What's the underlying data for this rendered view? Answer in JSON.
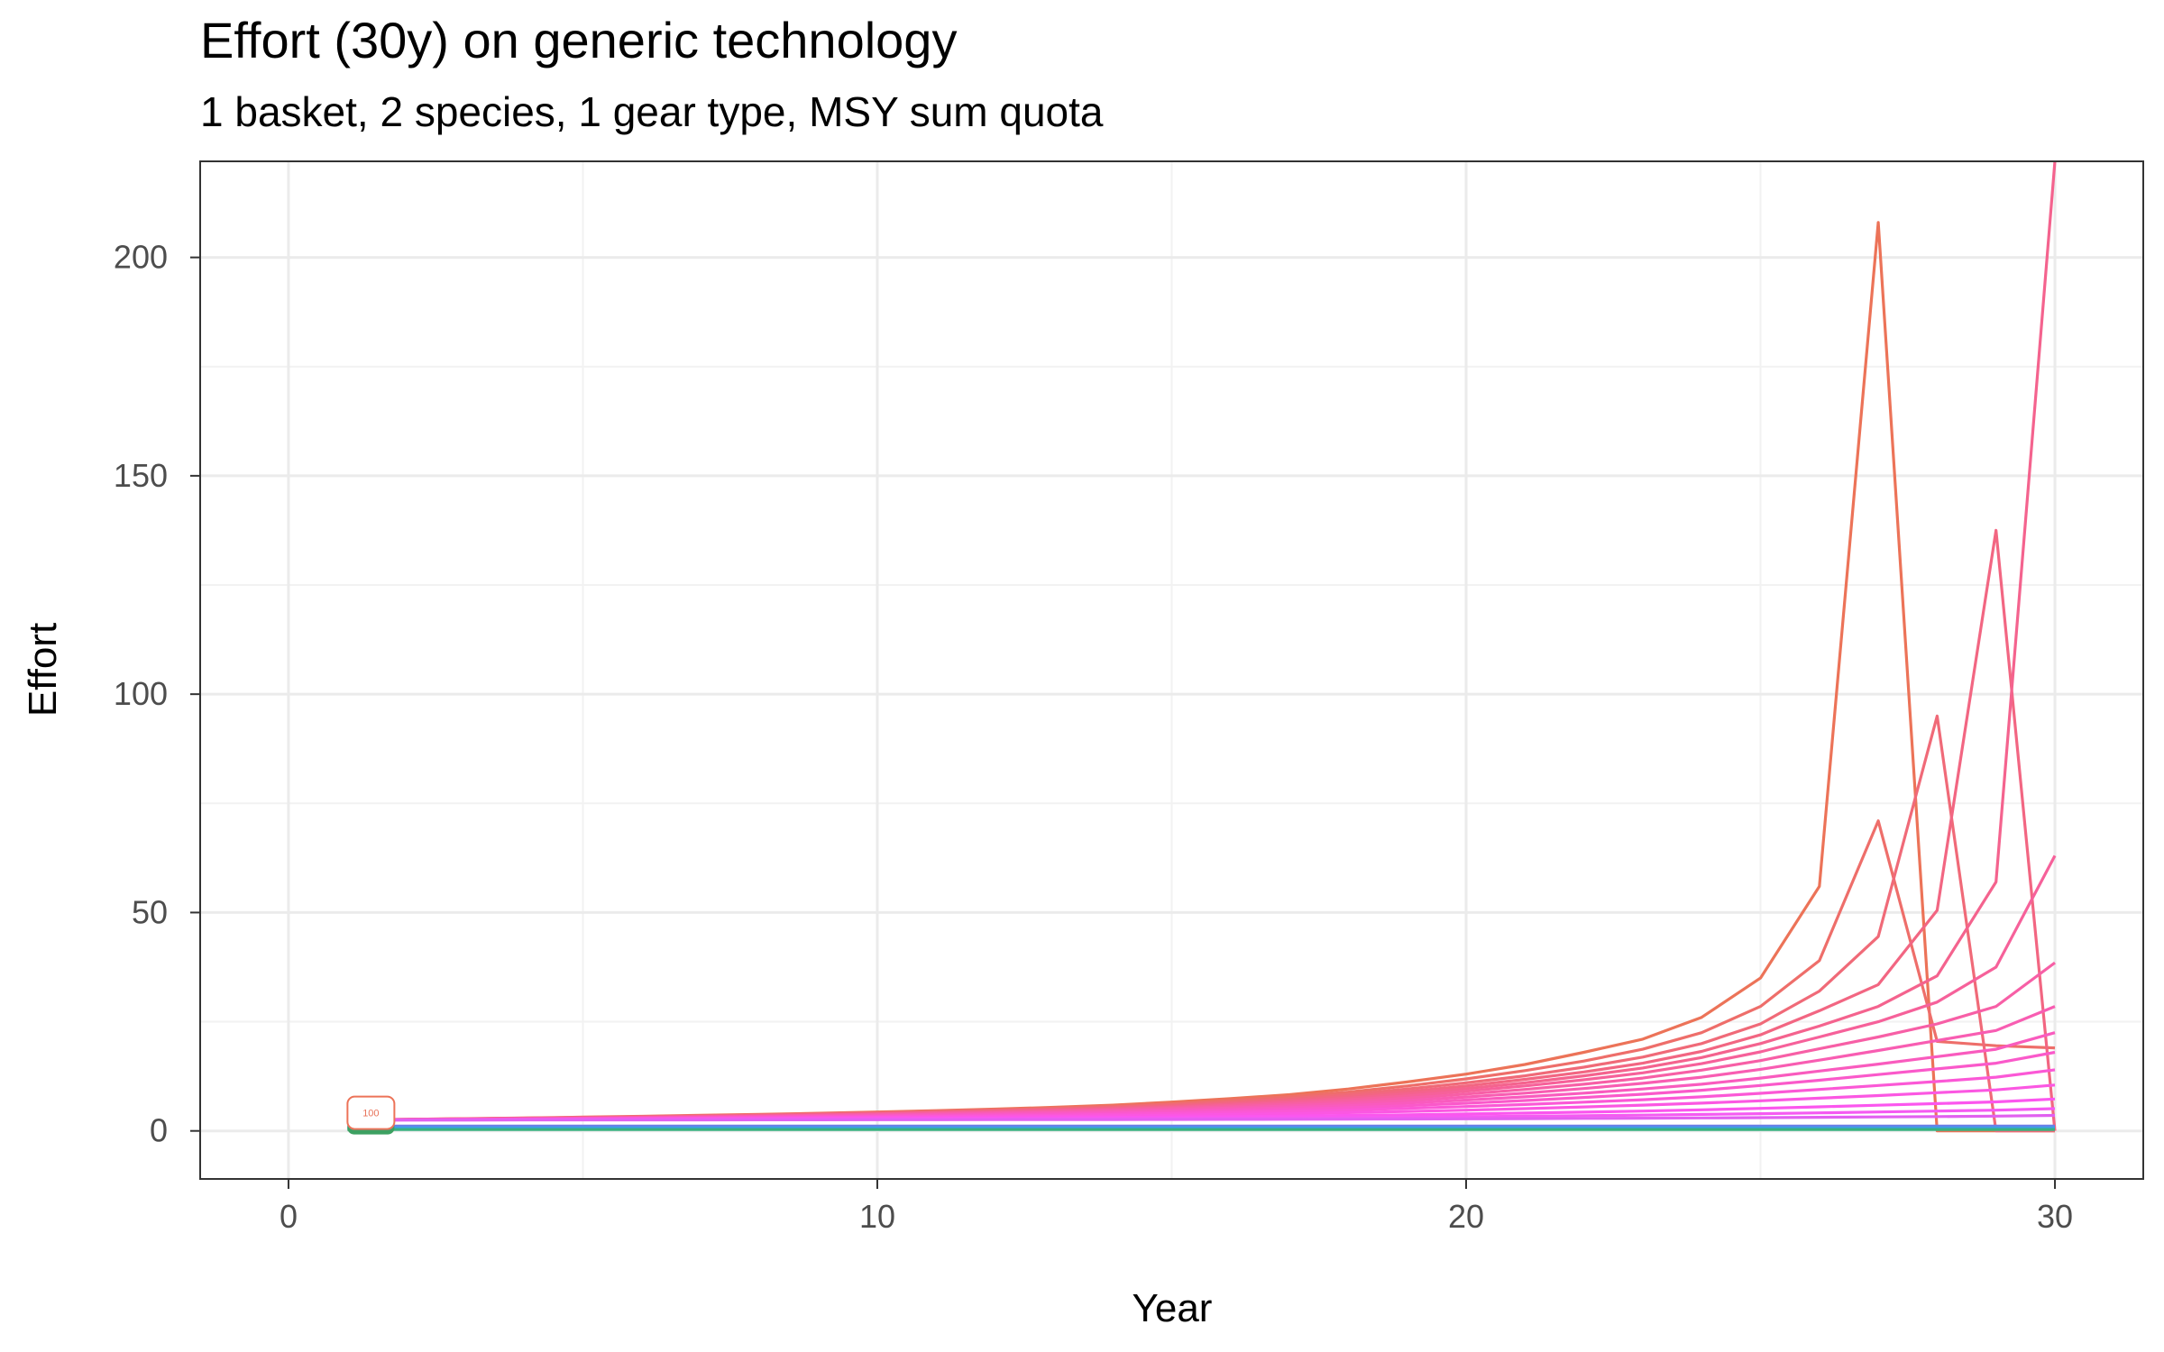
{
  "chart_data": {
    "type": "line",
    "title": "Effort (30y) on generic technology",
    "subtitle": "1 basket, 2 species, 1 gear type, MSY sum quota",
    "xlabel": "Year",
    "ylabel": "Effort",
    "xlim": [
      -1.5,
      31.5
    ],
    "ylim": [
      -11,
      222
    ],
    "x_ticks": [
      0,
      10,
      20,
      30
    ],
    "y_ticks": [
      0,
      50,
      100,
      150,
      200
    ],
    "x_ticks_minor": [
      5,
      15,
      25
    ],
    "y_ticks_minor": [
      25,
      75,
      125,
      175
    ],
    "grid": true,
    "legend": "none",
    "label_box": {
      "text": "100",
      "x": 1.4,
      "y": 2.5
    },
    "x": [
      1,
      2,
      3,
      4,
      5,
      6,
      7,
      8,
      9,
      10,
      11,
      12,
      13,
      14,
      15,
      16,
      17,
      18,
      19,
      20,
      21,
      22,
      23,
      24,
      25,
      26,
      27,
      28,
      29,
      30
    ],
    "series": [
      {
        "color": "#ec7358",
        "values": [
          2.5,
          2.65,
          2.8,
          2.97,
          3.15,
          3.35,
          3.56,
          3.8,
          4.05,
          4.33,
          4.65,
          5.0,
          5.4,
          5.9,
          6.6,
          7.4,
          8.3,
          9.6,
          11.2,
          13.0,
          15.2,
          18.0,
          21.0,
          26.0,
          35.0,
          56.0,
          208.0,
          0,
          0,
          0
        ]
      },
      {
        "color": "#ee6e6a",
        "values": [
          2.5,
          2.64,
          2.78,
          2.94,
          3.1,
          3.29,
          3.49,
          3.7,
          3.95,
          4.21,
          4.5,
          4.83,
          5.2,
          5.65,
          6.25,
          7.0,
          7.85,
          8.9,
          10.3,
          11.9,
          13.8,
          16.0,
          18.7,
          22.5,
          28.5,
          39.0,
          71.0,
          20.5,
          19.5,
          19.0
        ]
      },
      {
        "color": "#f06a78",
        "values": [
          2.5,
          2.63,
          2.76,
          2.91,
          3.06,
          3.24,
          3.42,
          3.62,
          3.85,
          4.1,
          4.37,
          4.68,
          5.03,
          5.45,
          5.98,
          6.65,
          7.4,
          8.35,
          9.6,
          11.0,
          12.6,
          14.6,
          16.9,
          20.0,
          24.5,
          32.0,
          44.5,
          95.0,
          0,
          0
        ]
      },
      {
        "color": "#f26682",
        "values": [
          2.5,
          2.62,
          2.75,
          2.88,
          3.03,
          3.19,
          3.37,
          3.56,
          3.77,
          4.0,
          4.26,
          4.55,
          4.88,
          5.27,
          5.76,
          6.36,
          7.05,
          7.9,
          9.0,
          10.3,
          11.8,
          13.5,
          15.5,
          18.2,
          22.0,
          27.5,
          33.5,
          50.5,
          137.5,
          0
        ]
      },
      {
        "color": "#f4638e",
        "values": [
          2.5,
          2.61,
          2.73,
          2.86,
          3.0,
          3.15,
          3.32,
          3.5,
          3.7,
          3.92,
          4.16,
          4.43,
          4.74,
          5.1,
          5.55,
          6.1,
          6.75,
          7.5,
          8.5,
          9.7,
          11.0,
          12.6,
          14.4,
          16.8,
          20.0,
          24.0,
          28.5,
          35.5,
          57.0,
          222.0
        ]
      },
      {
        "color": "#f6619a",
        "values": [
          2.5,
          2.6,
          2.71,
          2.83,
          2.96,
          3.1,
          3.26,
          3.43,
          3.62,
          3.83,
          4.06,
          4.31,
          4.6,
          4.93,
          5.34,
          5.84,
          6.43,
          7.12,
          8.0,
          9.1,
          10.3,
          11.7,
          13.3,
          15.4,
          18.1,
          21.5,
          25.0,
          29.5,
          37.5,
          63.0
        ]
      },
      {
        "color": "#f75fa6",
        "values": [
          2.5,
          2.59,
          2.69,
          2.8,
          2.92,
          3.05,
          3.2,
          3.36,
          3.54,
          3.73,
          3.94,
          4.18,
          4.44,
          4.75,
          5.12,
          5.56,
          6.08,
          6.7,
          7.5,
          8.45,
          9.5,
          10.7,
          12.1,
          13.9,
          16.1,
          18.8,
          21.5,
          24.5,
          28.5,
          38.5
        ]
      },
      {
        "color": "#f85db2",
        "values": [
          2.5,
          2.58,
          2.67,
          2.77,
          2.88,
          3.0,
          3.13,
          3.28,
          3.44,
          3.62,
          3.81,
          4.02,
          4.26,
          4.54,
          4.87,
          5.26,
          5.72,
          6.26,
          6.95,
          7.75,
          8.65,
          9.7,
          10.9,
          12.3,
          14.1,
          16.2,
          18.4,
          20.7,
          23.0,
          28.5
        ]
      },
      {
        "color": "#f95bbe",
        "values": [
          2.5,
          2.57,
          2.65,
          2.74,
          2.84,
          2.94,
          3.06,
          3.19,
          3.33,
          3.49,
          3.66,
          3.85,
          4.06,
          4.31,
          4.6,
          4.94,
          5.34,
          5.8,
          6.38,
          7.05,
          7.8,
          8.65,
          9.6,
          10.7,
          12.1,
          13.7,
          15.3,
          17.0,
          18.7,
          22.5
        ]
      },
      {
        "color": "#fa59ca",
        "values": [
          2.5,
          2.56,
          2.63,
          2.71,
          2.79,
          2.88,
          2.98,
          3.09,
          3.21,
          3.34,
          3.49,
          3.65,
          3.83,
          4.04,
          4.29,
          4.58,
          4.92,
          5.3,
          5.78,
          6.33,
          6.95,
          7.65,
          8.4,
          9.3,
          10.4,
          11.6,
          12.9,
          14.2,
          15.5,
          18.0
        ]
      },
      {
        "color": "#fb58d6",
        "values": [
          2.5,
          2.55,
          2.61,
          2.67,
          2.74,
          2.82,
          2.9,
          2.99,
          3.09,
          3.2,
          3.32,
          3.45,
          3.6,
          3.77,
          3.97,
          4.2,
          4.47,
          4.77,
          5.15,
          5.58,
          6.05,
          6.58,
          7.15,
          7.8,
          8.6,
          9.5,
          10.4,
          11.3,
          12.3,
          14.0
        ]
      },
      {
        "color": "#fb57e2",
        "values": [
          2.5,
          2.54,
          2.58,
          2.63,
          2.68,
          2.74,
          2.8,
          2.87,
          2.95,
          3.03,
          3.12,
          3.22,
          3.33,
          3.45,
          3.6,
          3.77,
          3.96,
          4.18,
          4.45,
          4.75,
          5.1,
          5.48,
          5.9,
          6.35,
          6.9,
          7.5,
          8.1,
          8.75,
          9.4,
          10.5
        ]
      },
      {
        "color": "#fb56ee",
        "values": [
          2.5,
          2.52,
          2.55,
          2.58,
          2.61,
          2.65,
          2.69,
          2.73,
          2.78,
          2.83,
          2.89,
          2.95,
          3.02,
          3.1,
          3.19,
          3.29,
          3.41,
          3.54,
          3.7,
          3.88,
          4.08,
          4.3,
          4.55,
          4.82,
          5.15,
          5.5,
          5.88,
          6.25,
          6.65,
          7.3
        ]
      },
      {
        "color": "#f55af2",
        "values": [
          2.5,
          2.51,
          2.52,
          2.54,
          2.56,
          2.58,
          2.6,
          2.62,
          2.65,
          2.68,
          2.71,
          2.75,
          2.79,
          2.83,
          2.88,
          2.94,
          3.0,
          3.08,
          3.16,
          3.26,
          3.37,
          3.49,
          3.62,
          3.77,
          3.94,
          4.13,
          4.33,
          4.53,
          4.75,
          5.1
        ]
      },
      {
        "color": "#e160f0",
        "values": [
          2.5,
          2.5,
          2.5,
          2.51,
          2.51,
          2.52,
          2.52,
          2.53,
          2.54,
          2.55,
          2.56,
          2.57,
          2.59,
          2.6,
          2.62,
          2.64,
          2.67,
          2.7,
          2.73,
          2.77,
          2.81,
          2.86,
          2.91,
          2.97,
          3.04,
          3.12,
          3.2,
          3.29,
          3.38,
          3.55
        ]
      },
      {
        "color": "#6b7fe8",
        "values": [
          1.1,
          1.1,
          1.1,
          1.1,
          1.1,
          1.1,
          1.1,
          1.1,
          1.1,
          1.1,
          1.1,
          1.1,
          1.1,
          1.1,
          1.1,
          1.1,
          1.1,
          1.1,
          1.1,
          1.1,
          1.1,
          1.1,
          1.1,
          1.1,
          1.1,
          1.1,
          1.1,
          1.1,
          1.1,
          1.1
        ]
      },
      {
        "color": "#3da0e6",
        "values": [
          0.7,
          0.7,
          0.7,
          0.7,
          0.7,
          0.7,
          0.7,
          0.7,
          0.7,
          0.7,
          0.7,
          0.7,
          0.7,
          0.7,
          0.7,
          0.7,
          0.7,
          0.7,
          0.7,
          0.7,
          0.7,
          0.7,
          0.7,
          0.7,
          0.7,
          0.7,
          0.7,
          0.7,
          0.7,
          0.7
        ]
      },
      {
        "color": "#38b27f",
        "values": [
          0.3,
          0.3,
          0.3,
          0.3,
          0.3,
          0.3,
          0.3,
          0.3,
          0.3,
          0.3,
          0.3,
          0.3,
          0.3,
          0.3,
          0.3,
          0.3,
          0.3,
          0.3,
          0.3,
          0.3,
          0.3,
          0.3,
          0.3,
          0.3,
          0.3,
          0.3,
          0.3,
          0.3,
          0.3,
          0.3
        ]
      }
    ]
  }
}
